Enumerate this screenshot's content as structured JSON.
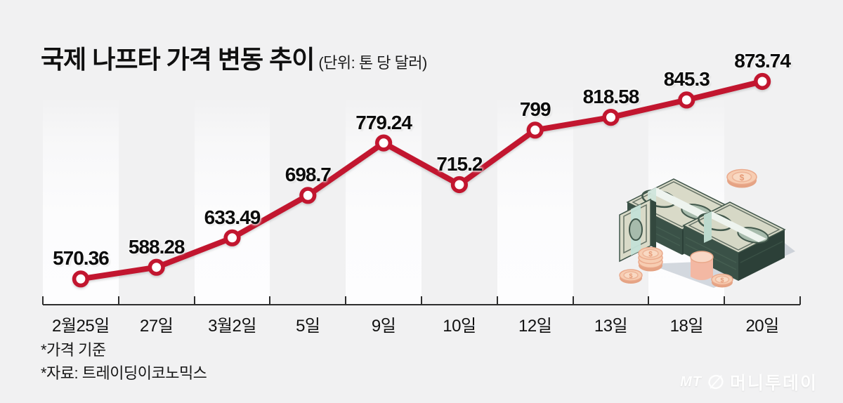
{
  "title": {
    "text": "국제 나프타 가격 변동 추이",
    "unit": "(단위: 톤 당 달러)"
  },
  "chart_data": {
    "type": "line",
    "title": "국제 나프타 가격 변동 추이",
    "unit_note": "(단위: 톤 당 달러)",
    "categories": [
      "2월25일",
      "27일",
      "3월2일",
      "5일",
      "9일",
      "10일",
      "12일",
      "13일",
      "18일",
      "20일"
    ],
    "values": [
      570.36,
      588.28,
      633.49,
      698.7,
      779.24,
      715.2,
      799,
      818.58,
      845.3,
      873.74
    ],
    "point_labels": [
      "570.36",
      "588.28",
      "633.49",
      "698.7",
      "779.24",
      "715.2",
      "799",
      "818.58",
      "845.3",
      "873.74"
    ],
    "ylim": [
      540,
      900
    ],
    "xlabel": "",
    "ylabel": "",
    "legend": "none",
    "grid": "alternating-vertical-bands",
    "marker": "open-circle",
    "line_color": "#c2162f",
    "marker_fill": "#ffffff"
  },
  "footnotes": [
    "*가격 기준",
    "*자료: 트레이딩이코노믹스"
  ],
  "watermark": {
    "mt": "MT",
    "name": "머니투데이",
    "icon": "mt-coin-icon"
  },
  "illustration": "money-stacks-and-coins",
  "colors": {
    "background": "#f1f1f2",
    "band": "#fdfdfe",
    "axis": "#2e2e2e",
    "line": "#c2162f",
    "text": "#111111",
    "watermark": "#ffffff"
  }
}
